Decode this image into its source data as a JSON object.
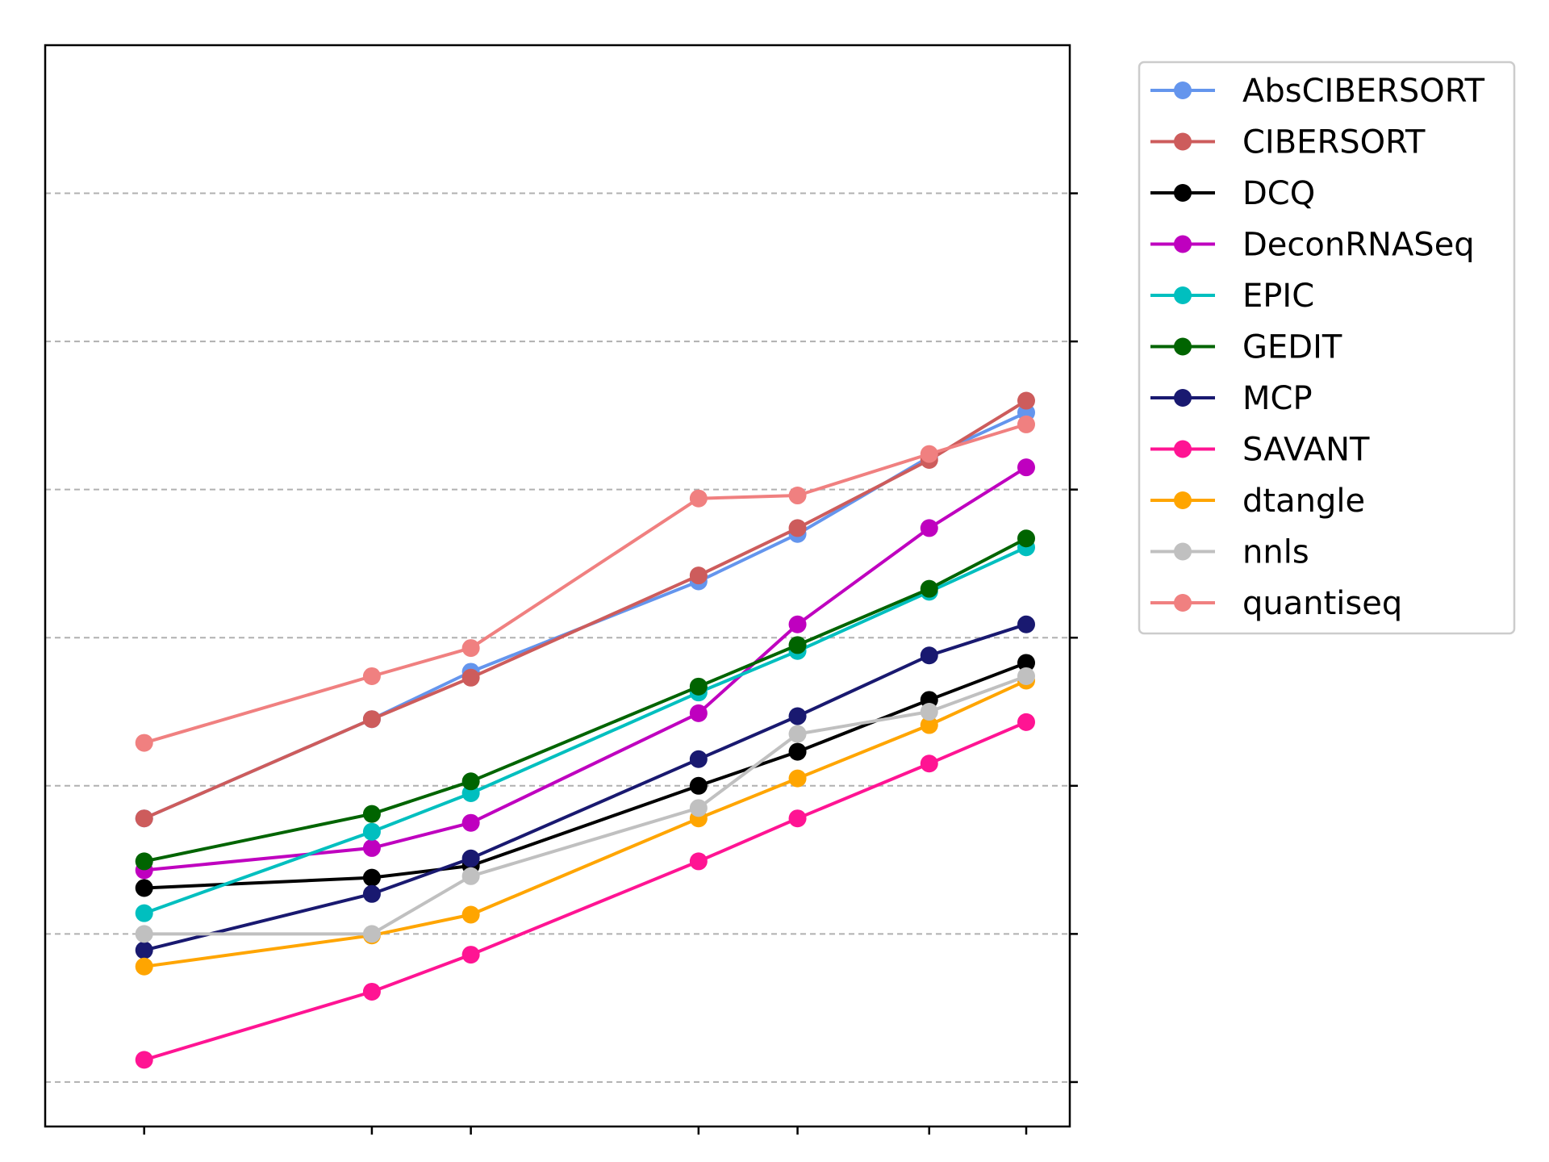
{
  "chart_data": {
    "type": "line",
    "title": "",
    "xlabel": "",
    "ylabel": "",
    "x": [
      1,
      3.3,
      4.3,
      6.6,
      7.6,
      8.93,
      9.91
    ],
    "xlim": [
      0,
      10.35
    ],
    "ylim": [
      -0.3,
      7
    ],
    "yticks": [
      0,
      1,
      2,
      3,
      4,
      5,
      6
    ],
    "grid": "horizontal dashed",
    "legend_position": "outside right",
    "colors": {
      "AbsCIBERSORT": "#6495ed",
      "CIBERSORT": "#cd5c5c",
      "DCQ": "#000000",
      "DeconRNASeq": "#bf00bf",
      "EPIC": "#00bfbf",
      "GEDIT": "#006400",
      "MCP": "#191970",
      "SAVANT": "#ff1493",
      "dtangle": "#ffa500",
      "nnls": "#c0c0c0",
      "quantiseq": "#f08080"
    },
    "series": [
      {
        "name": "AbsCIBERSORT",
        "values": [
          1.78,
          2.45,
          2.77,
          3.38,
          3.7,
          4.22,
          4.52
        ]
      },
      {
        "name": "CIBERSORT",
        "values": [
          1.78,
          2.45,
          2.73,
          3.42,
          3.74,
          4.2,
          4.6
        ]
      },
      {
        "name": "DCQ",
        "values": [
          1.31,
          1.38,
          1.46,
          2.0,
          2.23,
          2.58,
          2.83
        ]
      },
      {
        "name": "DeconRNASeq",
        "values": [
          1.43,
          1.58,
          1.75,
          2.49,
          3.09,
          3.74,
          4.15
        ]
      },
      {
        "name": "EPIC",
        "values": [
          1.14,
          1.69,
          1.95,
          2.63,
          2.91,
          3.31,
          3.61
        ]
      },
      {
        "name": "GEDIT",
        "values": [
          1.49,
          1.81,
          2.03,
          2.67,
          2.95,
          3.33,
          3.67
        ]
      },
      {
        "name": "MCP",
        "values": [
          0.89,
          1.27,
          1.51,
          2.18,
          2.47,
          2.88,
          3.09
        ]
      },
      {
        "name": "SAVANT",
        "values": [
          0.15,
          0.61,
          0.86,
          1.49,
          1.78,
          2.15,
          2.43
        ]
      },
      {
        "name": "dtangle",
        "values": [
          0.78,
          0.99,
          1.13,
          1.78,
          2.05,
          2.41,
          2.71
        ]
      },
      {
        "name": "nnls",
        "values": [
          1.0,
          1.0,
          1.39,
          1.85,
          2.35,
          2.5,
          2.74
        ]
      },
      {
        "name": "quantiseq",
        "values": [
          2.29,
          2.74,
          2.93,
          3.94,
          3.96,
          4.24,
          4.44
        ]
      }
    ]
  }
}
